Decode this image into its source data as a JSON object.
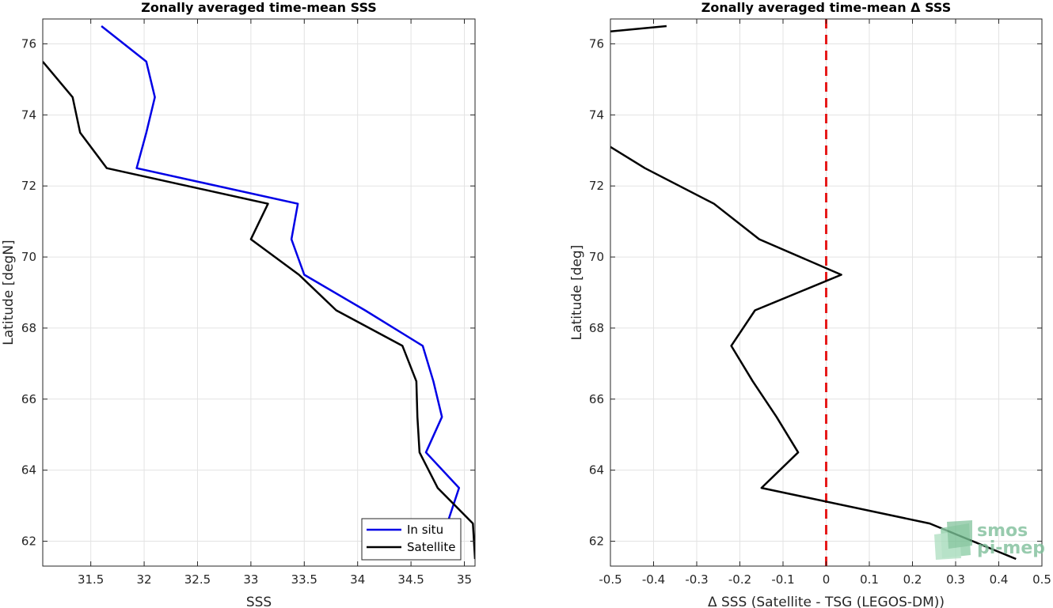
{
  "chart_data": [
    {
      "type": "line",
      "title": "Zonally averaged time-mean SSS",
      "xlabel": "SSS",
      "ylabel": "Latitude [degN]",
      "xlim": [
        31.05,
        35.1
      ],
      "ylim": [
        61.3,
        76.7
      ],
      "xticks": [
        31.5,
        32,
        32.5,
        33,
        33.5,
        34,
        34.5,
        35
      ],
      "xtick_labels": [
        "31.5",
        "32",
        "32.5",
        "33",
        "33.5",
        "34",
        "34.5",
        "35"
      ],
      "yticks": [
        62,
        64,
        66,
        68,
        70,
        72,
        74,
        76
      ],
      "ytick_labels": [
        "62",
        "64",
        "66",
        "68",
        "70",
        "72",
        "74",
        "76"
      ],
      "grid": true,
      "legend": "bottom-right",
      "series": [
        {
          "name": "In situ",
          "color": "#0000e6",
          "points": [
            [
              31.6,
              76.5
            ],
            [
              32.02,
              75.5
            ],
            [
              32.1,
              74.5
            ],
            [
              32.02,
              73.5
            ],
            [
              31.93,
              72.5
            ],
            [
              33.44,
              71.5
            ],
            [
              33.38,
              70.5
            ],
            [
              33.5,
              69.5
            ],
            [
              34.07,
              68.5
            ],
            [
              34.61,
              67.5
            ],
            [
              34.71,
              66.5
            ],
            [
              34.79,
              65.5
            ],
            [
              34.64,
              64.5
            ],
            [
              34.95,
              63.5
            ],
            [
              34.84,
              62.5
            ],
            [
              34.45,
              61.5
            ]
          ]
        },
        {
          "name": "Satellite",
          "color": "#000000",
          "points": [
            [
              31.05,
              75.5
            ],
            [
              31.33,
              74.5
            ],
            [
              31.4,
              73.5
            ],
            [
              31.65,
              72.5
            ],
            [
              33.16,
              71.5
            ],
            [
              33.0,
              70.5
            ],
            [
              33.45,
              69.5
            ],
            [
              33.8,
              68.5
            ],
            [
              34.42,
              67.5
            ],
            [
              34.55,
              66.5
            ],
            [
              34.56,
              65.5
            ],
            [
              34.58,
              64.5
            ],
            [
              34.75,
              63.5
            ],
            [
              35.08,
              62.5
            ],
            [
              35.1,
              61.5
            ]
          ]
        }
      ]
    },
    {
      "type": "line",
      "title": "Zonally averaged time-mean Δ SSS",
      "xlabel": "Δ SSS (Satellite - TSG (LEGOS-DM))",
      "ylabel": "Latitude [deg]",
      "xlim": [
        -0.5,
        0.5
      ],
      "ylim": [
        61.3,
        76.7
      ],
      "xticks": [
        -0.5,
        -0.4,
        -0.3,
        -0.2,
        -0.1,
        0,
        0.1,
        0.2,
        0.3,
        0.4,
        0.5
      ],
      "xtick_labels": [
        "-0.5",
        "-0.4",
        "-0.3",
        "-0.2",
        "-0.1",
        "0",
        "0.1",
        "0.2",
        "0.3",
        "0.4",
        "0.5"
      ],
      "yticks": [
        62,
        64,
        66,
        68,
        70,
        72,
        74,
        76
      ],
      "ytick_labels": [
        "62",
        "64",
        "66",
        "68",
        "70",
        "72",
        "74",
        "76"
      ],
      "grid": true,
      "reference_line": {
        "x": 0,
        "color": "#e61a1a",
        "style": "dashed"
      },
      "series": [
        {
          "color": "#000000",
          "segments": [
            [
              [
                -0.5,
                76.35
              ],
              [
                -0.37,
                76.5
              ]
            ],
            [
              [
                -0.5,
                73.1
              ],
              [
                -0.42,
                72.5
              ],
              [
                -0.26,
                71.5
              ],
              [
                -0.155,
                70.5
              ],
              [
                0.035,
                69.5
              ],
              [
                -0.165,
                68.5
              ],
              [
                -0.22,
                67.5
              ],
              [
                -0.17,
                66.5
              ],
              [
                -0.115,
                65.5
              ],
              [
                -0.065,
                64.5
              ],
              [
                -0.15,
                63.5
              ],
              [
                0.24,
                62.5
              ],
              [
                0.44,
                61.5
              ]
            ]
          ]
        }
      ]
    }
  ],
  "watermark": {
    "line1": "smos",
    "line2": "pi-mep"
  }
}
